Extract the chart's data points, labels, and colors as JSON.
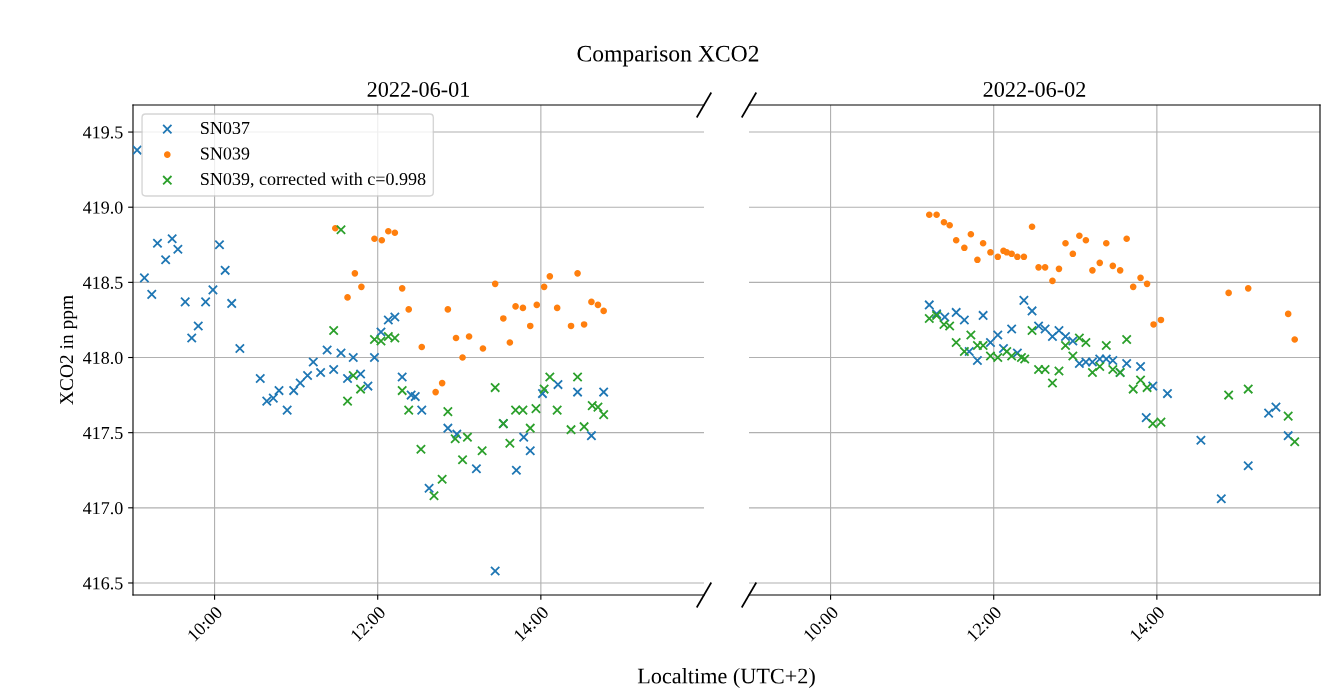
{
  "chart_data": [
    {
      "type": "scatter",
      "title": "Comparison XCO2",
      "subtitle": "2022-06-01",
      "xlabel": "Localtime (UTC+2)",
      "ylabel": "XCO2 in ppm",
      "xlim": [
        9,
        16
      ],
      "xticks": [
        {
          "value": 10,
          "label": "10:00"
        },
        {
          "value": 12,
          "label": "12:00"
        },
        {
          "value": 14,
          "label": "14:00"
        }
      ],
      "ylim": [
        416.42,
        419.68
      ],
      "yticks": [
        416.5,
        {
          "value": 417,
          "label": "417.0"
        },
        417.5,
        {
          "value": 418,
          "label": "418.0"
        },
        418.5,
        {
          "value": 419,
          "label": "419.0"
        },
        419.5
      ],
      "grid": true,
      "legend": "top left",
      "series": [
        {
          "name": "SN037",
          "color": "#1f77b4",
          "marker": "cross",
          "x": [
            9.05,
            9.14,
            9.23,
            9.3,
            9.4,
            9.48,
            9.55,
            9.64,
            9.72,
            9.8,
            9.89,
            9.98,
            10.06,
            10.13,
            10.21,
            10.31,
            10.56,
            10.64,
            10.72,
            10.79,
            10.89,
            10.97,
            11.05,
            11.14,
            11.21,
            11.3,
            11.38,
            11.46,
            11.55,
            11.63,
            11.7,
            11.79,
            11.88,
            11.96,
            12.04,
            12.13,
            12.21,
            12.3,
            12.41,
            12.46,
            12.54,
            12.63,
            12.86,
            12.97,
            13.21,
            13.44,
            13.54,
            13.7,
            13.79,
            13.87,
            14.02,
            14.21,
            14.45,
            14.62,
            14.77
          ],
          "values": [
            419.38,
            418.53,
            418.42,
            418.76,
            418.65,
            418.79,
            418.72,
            418.37,
            418.13,
            418.21,
            418.37,
            418.45,
            418.75,
            418.58,
            418.36,
            418.06,
            417.86,
            417.71,
            417.73,
            417.78,
            417.65,
            417.78,
            417.83,
            417.88,
            417.97,
            417.9,
            418.05,
            417.92,
            418.03,
            417.86,
            418.0,
            417.89,
            417.81,
            418.0,
            418.17,
            418.25,
            418.27,
            417.87,
            417.75,
            417.74,
            417.65,
            417.13,
            417.53,
            417.49,
            417.26,
            416.58,
            417.56,
            417.25,
            417.47,
            417.38,
            417.76,
            417.82,
            417.77,
            417.48,
            417.77
          ]
        },
        {
          "name": "SN039",
          "color": "#ff7f0e",
          "marker": "circle",
          "x": [
            11.48,
            11.63,
            11.72,
            11.8,
            11.96,
            12.05,
            12.13,
            12.21,
            12.3,
            12.38,
            12.54,
            12.71,
            12.79,
            12.86,
            12.96,
            13.04,
            13.12,
            13.29,
            13.44,
            13.54,
            13.62,
            13.69,
            13.78,
            13.87,
            13.95,
            14.04,
            14.11,
            14.2,
            14.37,
            14.45,
            14.53,
            14.62,
            14.7,
            14.77
          ],
          "values": [
            418.86,
            418.4,
            418.56,
            418.47,
            418.79,
            418.78,
            418.84,
            418.83,
            418.46,
            418.32,
            418.07,
            417.77,
            417.83,
            418.32,
            418.13,
            418.0,
            418.14,
            418.06,
            418.49,
            418.26,
            418.1,
            418.34,
            418.33,
            418.21,
            418.35,
            418.47,
            418.54,
            418.33,
            418.21,
            418.56,
            418.22,
            418.37,
            418.35,
            418.31
          ]
        },
        {
          "name": "SN039, corrected with c=0.998",
          "color": "#2ca02c",
          "marker": "cross",
          "x": [
            11.46,
            11.55,
            11.63,
            11.7,
            11.79,
            11.96,
            12.04,
            12.13,
            12.21,
            12.3,
            12.38,
            12.53,
            12.69,
            12.79,
            12.86,
            12.95,
            13.04,
            13.1,
            13.28,
            13.44,
            13.54,
            13.62,
            13.69,
            13.78,
            13.87,
            13.94,
            14.04,
            14.11,
            14.2,
            14.37,
            14.45,
            14.53,
            14.63,
            14.7,
            14.77
          ],
          "values": [
            418.18,
            418.85,
            417.71,
            417.88,
            417.79,
            418.12,
            418.11,
            418.14,
            418.13,
            417.78,
            417.65,
            417.39,
            417.08,
            417.19,
            417.64,
            417.46,
            417.32,
            417.47,
            417.38,
            417.8,
            417.56,
            417.43,
            417.65,
            417.65,
            417.53,
            417.66,
            417.79,
            417.87,
            417.65,
            417.52,
            417.87,
            417.54,
            417.68,
            417.67,
            417.62
          ]
        }
      ]
    },
    {
      "type": "scatter",
      "subtitle": "2022-06-02",
      "tick_labels": "x",
      "xlim": [
        9,
        16
      ],
      "xticks": [
        {
          "value": 10,
          "label": "10:00"
        },
        {
          "value": 12,
          "label": "12:00"
        },
        {
          "value": 14,
          "label": "14:00"
        }
      ],
      "ylim": [
        416.42,
        419.68
      ],
      "yticks": [
        416.5,
        417,
        417.5,
        418,
        418.5,
        419,
        419.5
      ],
      "grid": true,
      "series": [
        {
          "color": "#1f77b4",
          "marker": "cross",
          "x": [
            11.21,
            11.3,
            11.4,
            11.54,
            11.64,
            11.7,
            11.8,
            11.87,
            11.96,
            12.05,
            12.12,
            12.22,
            12.29,
            12.37,
            12.47,
            12.55,
            12.63,
            12.72,
            12.8,
            12.88,
            12.97,
            13.05,
            13.13,
            13.21,
            13.3,
            13.38,
            13.46,
            13.55,
            13.63,
            13.8,
            13.87,
            13.95,
            14.13,
            14.54,
            14.79,
            15.12,
            15.37,
            15.46,
            15.61
          ],
          "values": [
            418.35,
            418.29,
            418.27,
            418.3,
            418.25,
            418.04,
            417.98,
            418.28,
            418.1,
            418.15,
            418.06,
            418.19,
            418.03,
            418.38,
            418.31,
            418.21,
            418.19,
            418.14,
            418.18,
            418.14,
            418.11,
            417.96,
            417.97,
            417.97,
            417.99,
            417.99,
            417.98,
            417.9,
            417.96,
            417.94,
            417.6,
            417.81,
            417.76,
            417.45,
            417.06,
            417.28,
            417.63,
            417.67,
            417.48
          ]
        },
        {
          "color": "#ff7f0e",
          "marker": "circle",
          "x": [
            11.21,
            11.3,
            11.39,
            11.46,
            11.54,
            11.64,
            11.72,
            11.8,
            11.87,
            11.96,
            12.05,
            12.12,
            12.16,
            12.22,
            12.29,
            12.37,
            12.47,
            12.55,
            12.63,
            12.72,
            12.8,
            12.88,
            12.97,
            13.05,
            13.13,
            13.21,
            13.3,
            13.38,
            13.46,
            13.55,
            13.63,
            13.71,
            13.8,
            13.88,
            13.96,
            14.05,
            14.88,
            15.12,
            15.61,
            15.69
          ],
          "values": [
            418.95,
            418.95,
            418.9,
            418.88,
            418.78,
            418.73,
            418.82,
            418.65,
            418.76,
            418.7,
            418.67,
            418.71,
            418.7,
            418.69,
            418.67,
            418.67,
            418.87,
            418.6,
            418.6,
            418.51,
            418.59,
            418.76,
            418.69,
            418.81,
            418.78,
            418.58,
            418.63,
            418.76,
            418.61,
            418.58,
            418.79,
            418.47,
            418.53,
            418.49,
            418.22,
            418.25,
            418.43,
            418.46,
            418.29,
            418.12
          ]
        },
        {
          "color": "#2ca02c",
          "marker": "cross",
          "x": [
            11.21,
            11.3,
            11.39,
            11.46,
            11.54,
            11.64,
            11.72,
            11.8,
            11.87,
            11.96,
            12.05,
            12.16,
            12.22,
            12.34,
            12.38,
            12.47,
            12.55,
            12.63,
            12.72,
            12.8,
            12.88,
            12.97,
            13.05,
            13.13,
            13.21,
            13.3,
            13.38,
            13.46,
            13.55,
            13.63,
            13.71,
            13.8,
            13.88,
            13.95,
            14.05,
            14.88,
            15.12,
            15.61,
            15.69
          ],
          "values": [
            418.26,
            418.28,
            418.22,
            418.21,
            418.1,
            418.04,
            418.15,
            418.08,
            418.08,
            418.01,
            418.0,
            418.04,
            418.01,
            418.0,
            417.99,
            418.18,
            417.92,
            417.92,
            417.83,
            417.91,
            418.08,
            418.01,
            418.13,
            418.1,
            417.9,
            417.94,
            418.08,
            417.92,
            417.9,
            418.12,
            417.79,
            417.85,
            417.8,
            417.56,
            417.57,
            417.75,
            417.79,
            417.61,
            417.44
          ]
        }
      ]
    }
  ]
}
